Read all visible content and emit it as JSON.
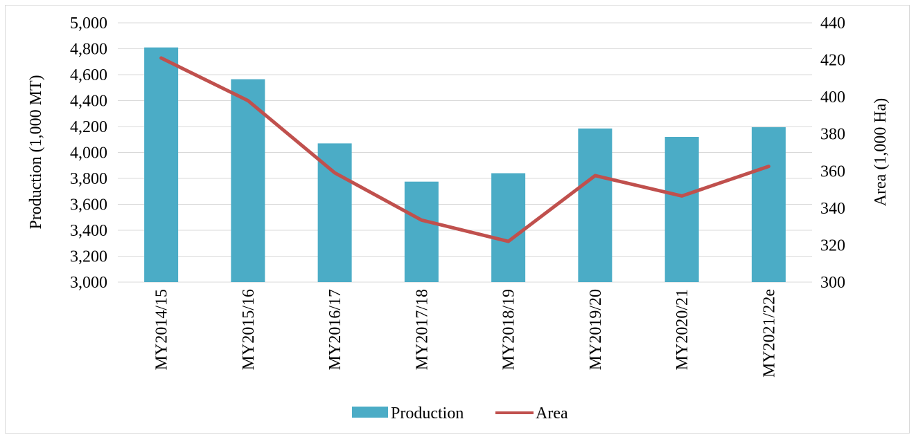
{
  "chart_data": {
    "type": "bar",
    "categories": [
      "MY2014/15",
      "MY2015/16",
      "MY2016/17",
      "MY2017/18",
      "MY2018/19",
      "MY2019/20",
      "MY2020/21",
      "MY2021/22e"
    ],
    "series": [
      {
        "name": "Production",
        "kind": "bar",
        "axis": "left",
        "color": "#4bacc6",
        "values": [
          4810,
          4565,
          4070,
          3775,
          3840,
          4185,
          4120,
          4195
        ]
      },
      {
        "name": "Area",
        "kind": "line",
        "axis": "right",
        "color": "#c0504d",
        "values": [
          421,
          398,
          359,
          333.5,
          322,
          357.5,
          346.5,
          362.5
        ]
      }
    ],
    "ylabel": "Production (1,000 MT)",
    "y2label": "Area (1,000 Ha)",
    "ylim": [
      3000,
      5000
    ],
    "y2lim": [
      300,
      440
    ],
    "yticks": [
      "3,000",
      "3,200",
      "3,400",
      "3,600",
      "3,800",
      "4,000",
      "4,200",
      "4,400",
      "4,600",
      "4,800",
      "5,000"
    ],
    "y2ticks": [
      "300",
      "320",
      "340",
      "360",
      "380",
      "400",
      "420",
      "440"
    ],
    "grid": true,
    "legend": "bottom"
  }
}
